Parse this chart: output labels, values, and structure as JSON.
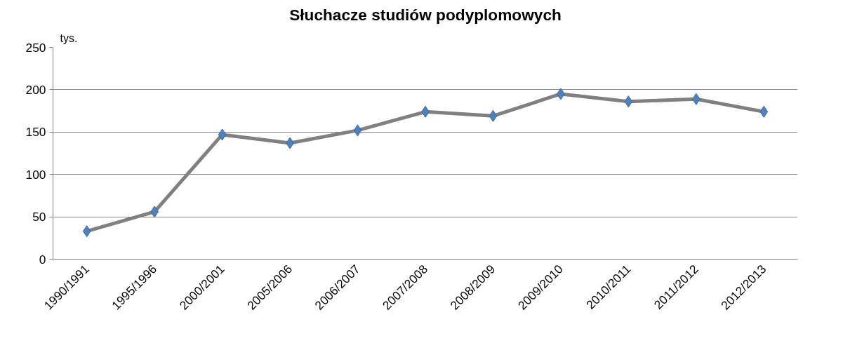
{
  "chart_data": {
    "type": "line",
    "title": "Słuchacze studiów podyplomowych",
    "ylabel": "tys.",
    "categories": [
      "1990/1991",
      "1995/1996",
      "2000/2001",
      "2005/2006",
      "2006/2007",
      "2007/2008",
      "2008/2009",
      "2009/2010",
      "2010/2011",
      "2011/2012",
      "2012/2013"
    ],
    "series": [
      {
        "color": "#808080",
        "values": [
          33,
          56,
          147,
          137,
          152,
          174,
          169,
          195,
          186,
          189,
          174
        ]
      }
    ],
    "ylim": [
      0,
      250
    ],
    "yticks": [
      0,
      50,
      100,
      150,
      200,
      250
    ],
    "grid": "y",
    "marker": "diamond",
    "line_style": "solid"
  }
}
